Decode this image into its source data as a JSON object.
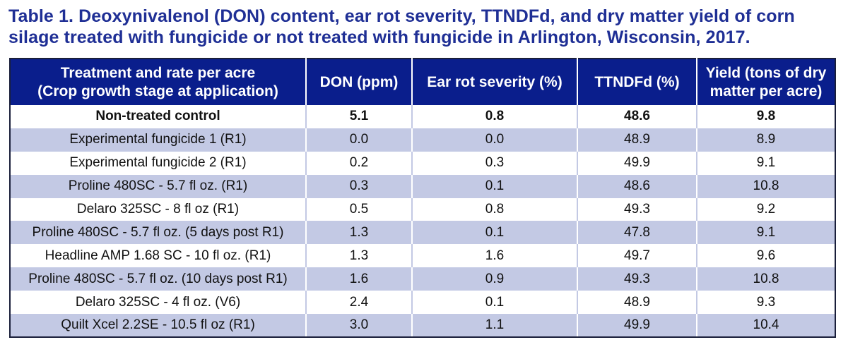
{
  "caption": {
    "line1": "Table 1.  Deoxynivalenol (DON) content, ear rot severity, TTNDFd, and dry matter yield of corn",
    "line2": "silage treated with fungicide or not treated with fungicide in Arlington, Wisconsin, 2017."
  },
  "table": {
    "headers": {
      "treatment_line1": "Treatment and rate per acre",
      "treatment_line2": "(Crop growth stage at application)",
      "don": "DON (ppm)",
      "ear_rot": "Ear rot severity (%)",
      "ttndfd": "TTNDFd (%)",
      "yield_line1": "Yield (tons of dry",
      "yield_line2": "matter per acre)"
    },
    "rows": [
      {
        "treatment": "Non-treated control",
        "don": "5.1",
        "ear_rot": "0.8",
        "ttndfd": "48.6",
        "yield": "9.8",
        "bold": true
      },
      {
        "treatment": "Experimental fungicide 1 (R1)",
        "don": "0.0",
        "ear_rot": "0.0",
        "ttndfd": "48.9",
        "yield": "8.9"
      },
      {
        "treatment": "Experimental fungicide 2 (R1)",
        "don": "0.2",
        "ear_rot": "0.3",
        "ttndfd": "49.9",
        "yield": "9.1"
      },
      {
        "treatment": "Proline 480SC - 5.7 fl oz. (R1)",
        "don": "0.3",
        "ear_rot": "0.1",
        "ttndfd": "48.6",
        "yield": "10.8"
      },
      {
        "treatment": "Delaro 325SC - 8 fl oz (R1)",
        "don": "0.5",
        "ear_rot": "0.8",
        "ttndfd": "49.3",
        "yield": "9.2"
      },
      {
        "treatment": "Proline 480SC - 5.7 fl oz. (5 days post R1)",
        "don": "1.3",
        "ear_rot": "0.1",
        "ttndfd": "47.8",
        "yield": "9.1"
      },
      {
        "treatment": "Headline AMP 1.68 SC - 10 fl oz. (R1)",
        "don": "1.3",
        "ear_rot": "1.6",
        "ttndfd": "49.7",
        "yield": "9.6"
      },
      {
        "treatment": "Proline 480SC - 5.7 fl oz. (10 days post R1)",
        "don": "1.6",
        "ear_rot": "0.9",
        "ttndfd": "49.3",
        "yield": "10.8"
      },
      {
        "treatment": "Delaro 325SC - 4 fl oz. (V6)",
        "don": "2.4",
        "ear_rot": "0.1",
        "ttndfd": "48.9",
        "yield": "9.3"
      },
      {
        "treatment": "Quilt Xcel 2.2SE - 10.5 fl oz (R1)",
        "don": "3.0",
        "ear_rot": "1.1",
        "ttndfd": "49.9",
        "yield": "10.4"
      }
    ]
  },
  "colors": {
    "title_text": "#1f2f95",
    "header_bg": "#0a1e8c",
    "stripe_bg": "#c3c9e4"
  }
}
